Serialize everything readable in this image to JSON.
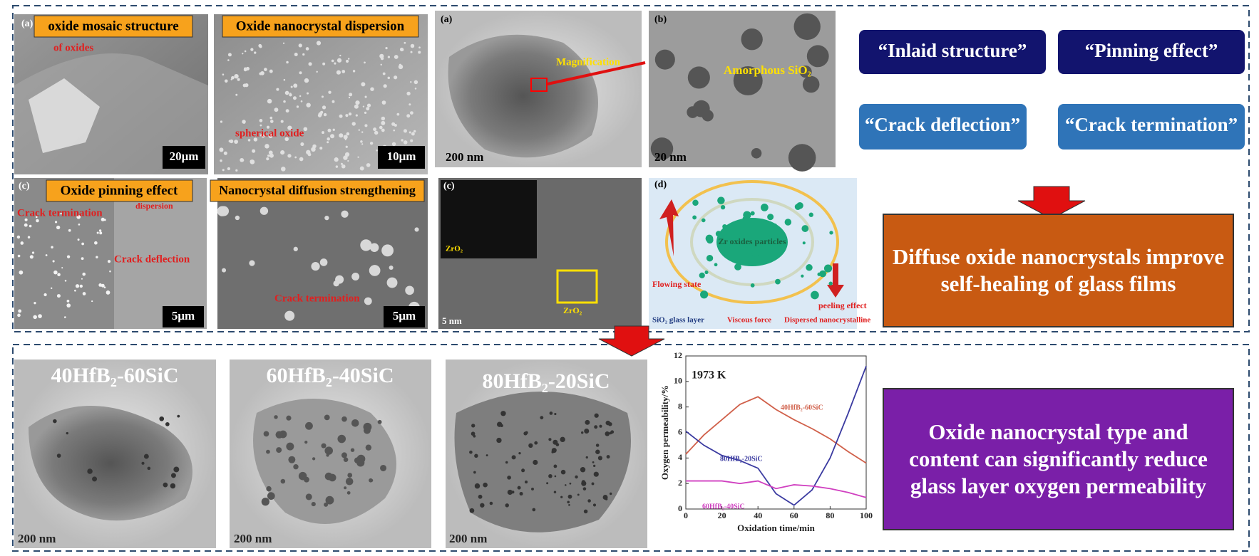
{
  "panels": [
    {
      "letter": "(a)",
      "title": "oxide mosaic structure",
      "notes": [
        "of oxides"
      ],
      "scale": "20μm"
    },
    {
      "title": "Oxide nanocrystal dispersion",
      "notes": [
        "spherical oxide"
      ],
      "scale": "10μm"
    },
    {
      "letter": "(a)",
      "notes": [
        "Magnification"
      ],
      "scale": "200 nm"
    },
    {
      "letter": "(b)",
      "notes": [
        "Amorphous SiO₂"
      ],
      "scale": "20 nm"
    },
    {
      "letter": "(c)",
      "title": "Oxide pinning effect",
      "notes": [
        "Crack termination",
        "dispersion",
        "Crack deflection"
      ],
      "scale": "5μm"
    },
    {
      "title": "Nanocrystal diffusion strengthening",
      "notes": [
        "Crack termination"
      ],
      "scale": "5μm"
    },
    {
      "letter": "(c)",
      "notes": [
        "ZrO₂",
        "ZrO₂"
      ],
      "scale": "5 nm"
    },
    {
      "letter": "(d)",
      "notes": [
        "Zr oxides particles",
        "Flowing state",
        "peeling effect"
      ],
      "legend": [
        "SiO₂ glass layer",
        "Viscous force",
        "Dispersed nanocrystalline"
      ]
    }
  ],
  "effects": [
    "“Inlaid structure”",
    "“Pinning effect”",
    "“Crack deflection”",
    "“Crack termination”"
  ],
  "conclusion_top": "Diffuse oxide nanocrystals improve self-healing of glass films",
  "samples": [
    {
      "name": "40HfB₂-60SiC",
      "scale": "200 nm"
    },
    {
      "name": "60HfB₂-40SiC",
      "scale": "200 nm"
    },
    {
      "name": "80HfB₂-20SiC",
      "scale": "200 nm"
    }
  ],
  "chart": {
    "type": "line",
    "annotation": "1973 K",
    "xlabel": "Oxidation time/min",
    "ylabel": "Oxygen permeability/%",
    "x": [
      0,
      10,
      20,
      30,
      40,
      50,
      60,
      70,
      80,
      90,
      100
    ],
    "series": [
      {
        "name": "40HfB₂-60SiC",
        "color": "#d0604a",
        "values": [
          4.3,
          5.8,
          7.0,
          8.2,
          8.8,
          7.8,
          7.0,
          6.3,
          5.5,
          4.5,
          3.6
        ]
      },
      {
        "name": "80HfB₂-20SiC",
        "color": "#3a3aa0",
        "values": [
          6.1,
          5.0,
          4.2,
          3.8,
          3.2,
          1.2,
          0.3,
          1.5,
          4.0,
          7.5,
          11.2
        ]
      },
      {
        "name": "60HfB₂-40SiC",
        "color": "#d040c0",
        "values": [
          2.2,
          2.2,
          2.2,
          2.0,
          2.2,
          1.6,
          1.9,
          1.8,
          1.6,
          1.3,
          0.9
        ]
      }
    ],
    "xlim": [
      0,
      100
    ],
    "xticks": [
      0,
      20,
      40,
      60,
      80,
      100
    ],
    "ylim": [
      0,
      12
    ],
    "yticks": [
      0,
      2,
      4,
      6,
      8,
      10,
      12
    ]
  },
  "conclusion_bottom": "Oxide nanocrystal type and content can significantly reduce glass layer oxygen permeability"
}
